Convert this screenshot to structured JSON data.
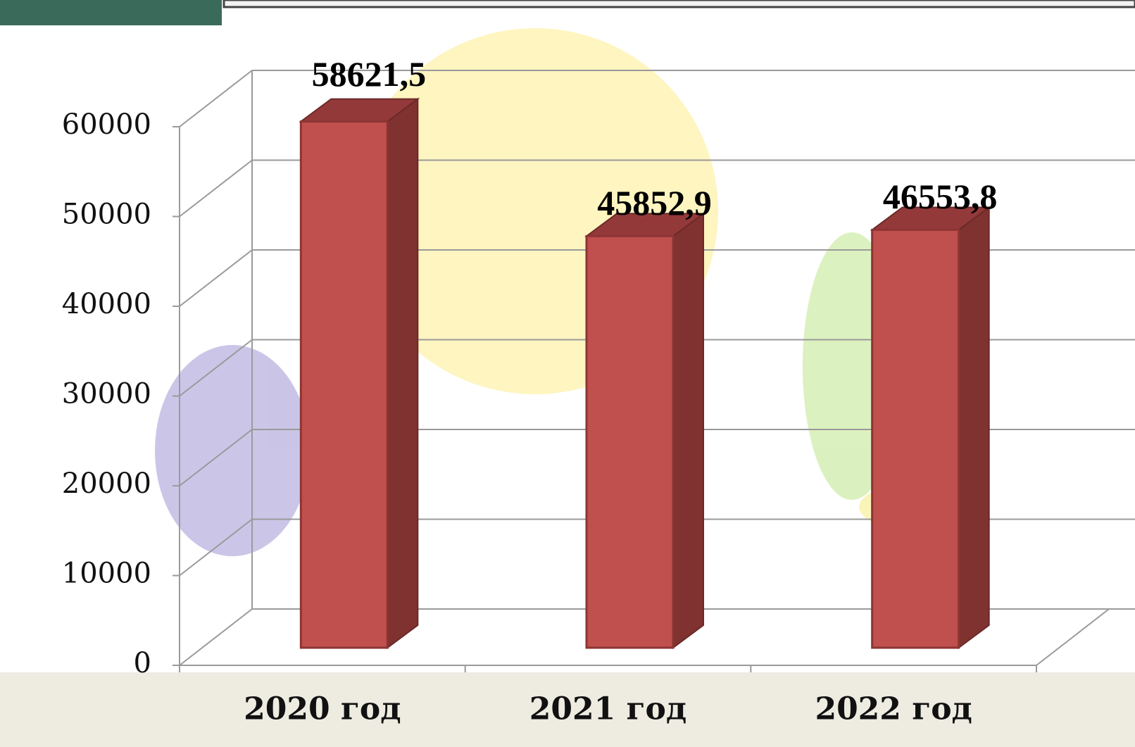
{
  "chart_data": {
    "type": "bar3d",
    "categories": [
      "2020 год",
      "2021 год",
      "2022 год"
    ],
    "values": [
      58621.5,
      45852.9,
      46553.8
    ],
    "value_labels": [
      "58621,5",
      "45852,9",
      "46553,8"
    ],
    "color": "#c0504d",
    "ylim": [
      0,
      60000
    ],
    "yticks": [
      0,
      10000,
      20000,
      30000,
      40000,
      50000,
      60000
    ],
    "grid": true
  }
}
